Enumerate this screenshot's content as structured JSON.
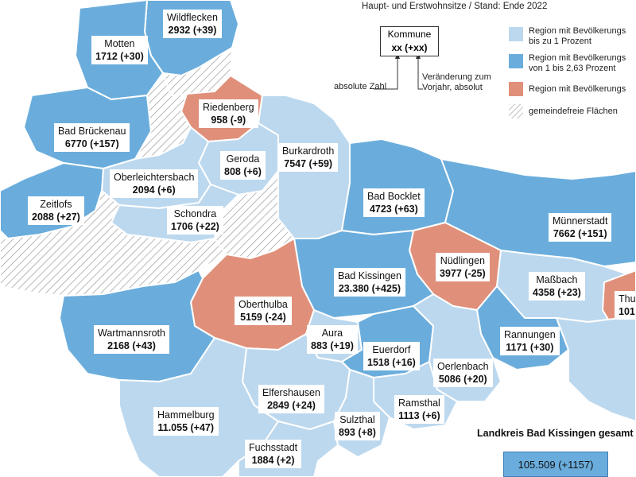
{
  "header": {
    "subtitle": "Haupt- und Erstwohnsitze / Stand: Ende 2022"
  },
  "legend": {
    "key_name": "Kommune",
    "key_value": "xx (+xx)",
    "absolute_label": "absolute Zahl",
    "change_label_1": "Veränderung zum",
    "change_label_2": "Vorjahr, absolut",
    "items": [
      {
        "label_1": "Region mit Bevölkerungs",
        "label_2": "bis zu 1 Prozent",
        "color": "#bcd8ee"
      },
      {
        "label_1": "Region mit Bevölkerungs",
        "label_2": "von 1 bis 2,63 Prozent",
        "color": "#6aaddc"
      },
      {
        "label_1": "Region mit Bevölkerungs",
        "label_2": "",
        "color": "#e0907a"
      },
      {
        "label_1": "gemeindefreie Flächen",
        "label_2": "",
        "color": "hatched"
      }
    ]
  },
  "colors": {
    "light_blue": "#bcd8ee",
    "mid_blue": "#6aaddc",
    "salmon": "#e0907a",
    "border": "#ffffff"
  },
  "municipalities": [
    {
      "name": "Wildflecken",
      "value": "2932 (+39)"
    },
    {
      "name": "Motten",
      "value": "1712 (+30)"
    },
    {
      "name": "Riedenberg",
      "value": "958 (-9)"
    },
    {
      "name": "Bad Brückenau",
      "value": "6770 (+157)"
    },
    {
      "name": "Geroda",
      "value": "808 (+6)"
    },
    {
      "name": "Burkardroth",
      "value": "7547 (+59)"
    },
    {
      "name": "Oberleichtersbach",
      "value": "2094 (+6)"
    },
    {
      "name": "Bad Bocklet",
      "value": "4723 (+63)"
    },
    {
      "name": "Zeitlofs",
      "value": "2088 (+27)"
    },
    {
      "name": "Schondra",
      "value": "1706 (+22)"
    },
    {
      "name": "Münnerstadt",
      "value": "7662 (+151)"
    },
    {
      "name": "Nüdlingen",
      "value": "3977 (-25)"
    },
    {
      "name": "Bad Kissingen",
      "value": "23.380 (+425)"
    },
    {
      "name": "Maßbach",
      "value": "4358 (+23)"
    },
    {
      "name": "Oberthulba",
      "value": "5159 (-24)"
    },
    {
      "name": "Thu",
      "value": "101"
    },
    {
      "name": "Aura",
      "value": "883 (+19)"
    },
    {
      "name": "Wartmannsroth",
      "value": "2168 (+43)"
    },
    {
      "name": "Rannungen",
      "value": "1171 (+30)"
    },
    {
      "name": "Euerdorf",
      "value": "1518 (+16)"
    },
    {
      "name": "Oerlenbach",
      "value": "5086 (+20)"
    },
    {
      "name": "Elfershausen",
      "value": "2849 (+24)"
    },
    {
      "name": "Ramsthal",
      "value": "1113 (+6)"
    },
    {
      "name": "Hammelburg",
      "value": "11.055 (+47)"
    },
    {
      "name": "Sulzthal",
      "value": "893 (+8)"
    },
    {
      "name": "Fuchsstadt",
      "value": "1884 (+2)"
    }
  ],
  "total": {
    "title": "Landkreis Bad Kissingen gesamt",
    "value": "105.509 (+1157)"
  }
}
